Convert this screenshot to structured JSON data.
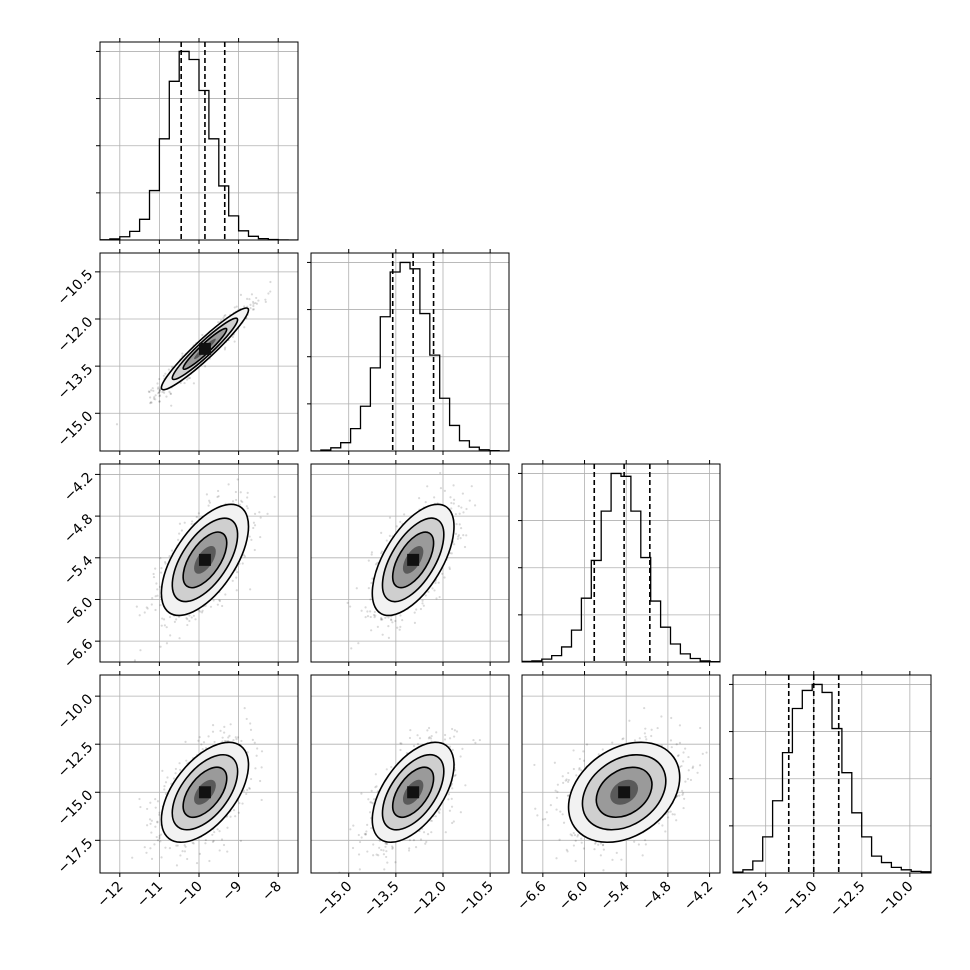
{
  "chart_data": {
    "type": "corner",
    "grid": true,
    "parameters": [
      {
        "ticks": [
          "−12",
          "−11",
          "−10",
          "−9",
          "−8"
        ],
        "tick_values": [
          -12,
          -11,
          -10,
          -9,
          -8
        ],
        "range": [
          -12.5,
          -7.5
        ],
        "quantiles": [
          -10.45,
          -9.85,
          -9.35
        ]
      },
      {
        "ticks": [
          "−15.0",
          "−13.5",
          "−12.0",
          "−10.5"
        ],
        "tick_values": [
          -15.0,
          -13.5,
          -12.0,
          -10.5
        ],
        "range": [
          -16.2,
          -9.9
        ],
        "quantiles": [
          -13.6,
          -12.95,
          -12.3
        ]
      },
      {
        "ticks": [
          "−6.6",
          "−6.0",
          "−5.4",
          "−4.8",
          "−4.2"
        ],
        "tick_values": [
          -6.6,
          -6.0,
          -5.4,
          -4.8,
          -4.2
        ],
        "range": [
          -6.9,
          -4.05
        ],
        "quantiles": [
          -5.86,
          -5.43,
          -5.06
        ]
      },
      {
        "ticks": [
          "−17.5",
          "−15.0",
          "−12.5",
          "−10.0"
        ],
        "tick_values": [
          -17.5,
          -15.0,
          -12.5,
          -10.0
        ],
        "range": [
          -19.2,
          -8.9
        ],
        "quantiles": [
          -16.3,
          -15.0,
          -13.7
        ]
      }
    ],
    "marginals": [
      {
        "bins": 20,
        "counts": [
          2,
          10,
          28,
          75,
          180,
          430,
          880,
          1380,
          1640,
          1570,
          1300,
          880,
          470,
          210,
          80,
          32,
          12,
          4,
          1,
          0
        ]
      },
      {
        "bins": 20,
        "counts": [
          0,
          3,
          10,
          26,
          70,
          140,
          260,
          420,
          560,
          590,
          570,
          430,
          300,
          165,
          80,
          32,
          12,
          4,
          1,
          0
        ]
      },
      {
        "bins": 20,
        "counts": [
          2,
          4,
          10,
          22,
          52,
          110,
          220,
          350,
          520,
          650,
          640,
          520,
          360,
          210,
          120,
          62,
          28,
          12,
          4,
          1
        ]
      },
      {
        "bins": 20,
        "counts": [
          2,
          8,
          30,
          90,
          180,
          300,
          410,
          455,
          470,
          450,
          360,
          250,
          150,
          90,
          42,
          26,
          14,
          8,
          4,
          3
        ]
      }
    ],
    "correlations": [
      [
        1.0,
        0.95,
        0.6,
        0.55
      ],
      [
        0.95,
        1.0,
        0.6,
        0.55
      ],
      [
        0.6,
        0.6,
        1.0,
        0.3
      ],
      [
        0.55,
        0.55,
        0.3,
        1.0
      ]
    ],
    "contour_levels": [
      0.5,
      1.0,
      1.5,
      2.0
    ]
  }
}
